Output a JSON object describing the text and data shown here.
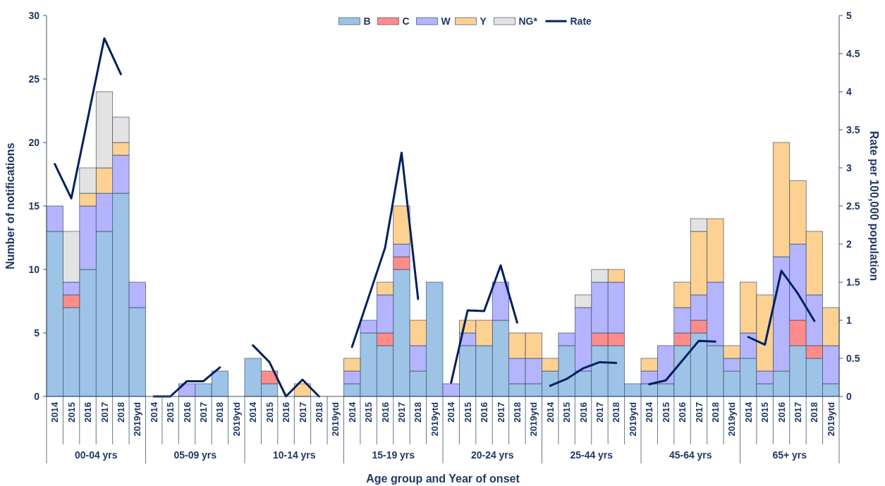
{
  "chart_data": {
    "type": "bar",
    "stacked": true,
    "xlabel": "Age group and Year of onset",
    "ylabel": "Number of notifications",
    "y2label": "Rate per 100,000 population",
    "categories": [
      "2014",
      "2015",
      "2016",
      "2017",
      "2018",
      "2019ytd",
      "2014",
      "2015",
      "2016",
      "2017",
      "2018",
      "2019ytd",
      "2014",
      "2015",
      "2016",
      "2017",
      "2018",
      "2019ytd",
      "2014",
      "2015",
      "2016",
      "2017",
      "2018",
      "2019ytd",
      "2014",
      "2015",
      "2016",
      "2017",
      "2018",
      "2019ytd",
      "2014",
      "2015",
      "2016",
      "2017",
      "2018",
      "2019ytd",
      "2014",
      "2015",
      "2016",
      "2017",
      "2018",
      "2019ytd",
      "2014",
      "2015",
      "2016",
      "2017",
      "2018",
      "2019ytd"
    ],
    "annotations": [
      "00-04 yrs",
      "05-09 yrs",
      "10-14 yrs",
      "15-19 yrs",
      "20-24 yrs",
      "25-44 yrs",
      "45-64 yrs",
      "65+ yrs"
    ],
    "ylim": [
      0,
      30
    ],
    "yticks": [
      0,
      5,
      10,
      15,
      20,
      25,
      30
    ],
    "y2lim": [
      0,
      5
    ],
    "y2ticks": [
      0,
      0.5,
      1,
      1.5,
      2,
      2.5,
      3,
      3.5,
      4,
      4.5,
      5
    ],
    "legend": "top",
    "grid": false,
    "series": [
      {
        "name": "B",
        "color": "#9dc3e6",
        "values": [
          13,
          7,
          10,
          13,
          16,
          7,
          0,
          0,
          0,
          1,
          2,
          0,
          3,
          1,
          0,
          0,
          0,
          0,
          1,
          5,
          4,
          10,
          2,
          9,
          0,
          4,
          4,
          6,
          1,
          1,
          2,
          4,
          2,
          4,
          4,
          1,
          1,
          1,
          4,
          5,
          4,
          2,
          3,
          1,
          2,
          4,
          3,
          1
        ]
      },
      {
        "name": "C",
        "color": "#ff8b8b",
        "values": [
          0,
          1,
          0,
          0,
          0,
          0,
          0,
          0,
          0,
          0,
          0,
          0,
          0,
          1,
          0,
          0,
          0,
          0,
          0,
          0,
          1,
          1,
          0,
          0,
          0,
          0,
          0,
          0,
          0,
          0,
          0,
          0,
          0,
          1,
          1,
          0,
          0,
          0,
          1,
          1,
          0,
          0,
          0,
          0,
          0,
          2,
          1,
          0
        ]
      },
      {
        "name": "W",
        "color": "#b4b4ff",
        "values": [
          2,
          1,
          5,
          3,
          3,
          2,
          0,
          0,
          1,
          0,
          0,
          0,
          0,
          0,
          0,
          0,
          0,
          0,
          1,
          1,
          3,
          1,
          2,
          0,
          1,
          1,
          0,
          3,
          2,
          2,
          0,
          1,
          5,
          4,
          4,
          0,
          1,
          3,
          2,
          2,
          5,
          1,
          2,
          1,
          9,
          6,
          4,
          3
        ]
      },
      {
        "name": "Y",
        "color": "#fcd192",
        "values": [
          0,
          0,
          1,
          2,
          1,
          0,
          0,
          0,
          0,
          0,
          0,
          0,
          0,
          0,
          0,
          1,
          0,
          0,
          1,
          0,
          1,
          3,
          2,
          0,
          0,
          1,
          2,
          0,
          2,
          2,
          1,
          0,
          0,
          0,
          1,
          0,
          1,
          0,
          2,
          5,
          5,
          1,
          4,
          6,
          9,
          5,
          5,
          3
        ]
      },
      {
        "name": "NG*",
        "color": "#e3e3e3",
        "values": [
          0,
          4,
          2,
          6,
          2,
          0,
          0,
          0,
          0,
          0,
          0,
          0,
          0,
          0,
          0,
          0,
          0,
          0,
          0,
          0,
          0,
          0,
          0,
          0,
          0,
          0,
          0,
          0,
          0,
          0,
          0,
          0,
          1,
          1,
          0,
          0,
          0,
          0,
          0,
          1,
          0,
          0,
          0,
          0,
          0,
          0,
          0,
          0
        ]
      },
      {
        "name": "Rate",
        "type": "line",
        "axis": "y2",
        "color": "#002060",
        "values": [
          3.05,
          2.6,
          3.65,
          4.7,
          4.23,
          null,
          0,
          0,
          0.2,
          0.2,
          0.38,
          null,
          0.67,
          0.45,
          0,
          0.22,
          0,
          null,
          0.65,
          1.3,
          1.95,
          3.2,
          1.28,
          null,
          0.18,
          1.13,
          1.12,
          1.72,
          0.97,
          null,
          0.14,
          0.23,
          0.37,
          0.45,
          0.44,
          null,
          0.16,
          0.21,
          0.47,
          0.73,
          0.72,
          null,
          0.78,
          0.68,
          1.65,
          1.35,
          0.99,
          null
        ]
      }
    ]
  }
}
